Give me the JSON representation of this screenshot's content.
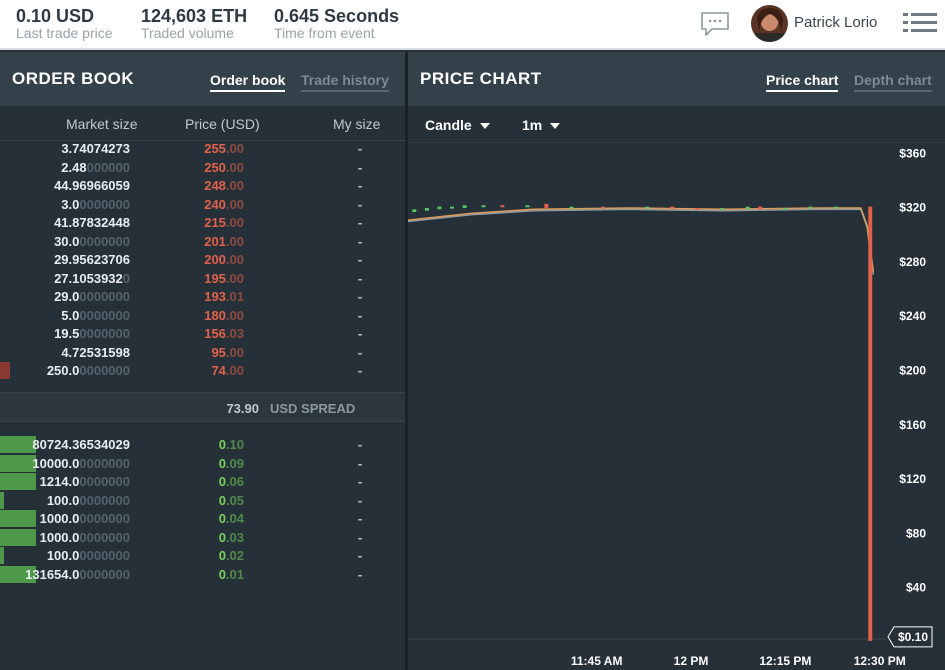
{
  "topbar": {
    "stats": [
      {
        "value": "0.10 USD",
        "label": "Last trade price"
      },
      {
        "value": "124,603 ETH",
        "label": "Traded volume"
      },
      {
        "value": "0.645 Seconds",
        "label": "Time from event"
      }
    ],
    "user_name": "Patrick Lorio",
    "icons": {
      "chat": "chat-bubble-icon",
      "menu": "hamburger-menu-icon"
    }
  },
  "order_book": {
    "title": "ORDER BOOK",
    "tabs": [
      {
        "label": "Order book",
        "active": true
      },
      {
        "label": "Trade history",
        "active": false
      }
    ],
    "columns": [
      "Market size",
      "Price (USD)",
      "My size"
    ],
    "asks": [
      {
        "size_main": "3.74074273",
        "size_pad": "",
        "price_main": "255",
        "price_pad": ".00",
        "my_size": "-",
        "depth": 0.0
      },
      {
        "size_main": "2.48",
        "size_pad": "000000",
        "price_main": "250",
        "price_pad": ".00",
        "my_size": "-",
        "depth": 0.0
      },
      {
        "size_main": "44.96966059",
        "size_pad": "",
        "price_main": "248",
        "price_pad": ".00",
        "my_size": "-",
        "depth": 0.0
      },
      {
        "size_main": "3.0",
        "size_pad": "0000000",
        "price_main": "240",
        "price_pad": ".00",
        "my_size": "-",
        "depth": 0.0
      },
      {
        "size_main": "41.87832448",
        "size_pad": "",
        "price_main": "215",
        "price_pad": ".00",
        "my_size": "-",
        "depth": 0.0
      },
      {
        "size_main": "30.0",
        "size_pad": "0000000",
        "price_main": "201",
        "price_pad": ".00",
        "my_size": "-",
        "depth": 0.0
      },
      {
        "size_main": "29.95623706",
        "size_pad": "",
        "price_main": "200",
        "price_pad": ".00",
        "my_size": "-",
        "depth": 0.0
      },
      {
        "size_main": "27.1053932",
        "size_pad": "0",
        "price_main": "195",
        "price_pad": ".00",
        "my_size": "-",
        "depth": 0.0
      },
      {
        "size_main": "29.0",
        "size_pad": "0000000",
        "price_main": "193",
        "price_pad": ".01",
        "my_size": "-",
        "depth": 0.0
      },
      {
        "size_main": "5.0",
        "size_pad": "0000000",
        "price_main": "180",
        "price_pad": ".00",
        "my_size": "-",
        "depth": 0.0
      },
      {
        "size_main": "19.5",
        "size_pad": "0000000",
        "price_main": "156",
        "price_pad": ".03",
        "my_size": "-",
        "depth": 0.0
      },
      {
        "size_main": "4.72531598",
        "size_pad": "",
        "price_main": "95",
        "price_pad": ".00",
        "my_size": "-",
        "depth": 0.0
      },
      {
        "size_main": "250.0",
        "size_pad": "0000000",
        "price_main": "74",
        "price_pad": ".00",
        "my_size": "-",
        "depth": 0.025
      }
    ],
    "spread": {
      "value": "73.90",
      "label": "USD SPREAD"
    },
    "bids": [
      {
        "size_main": "80724.36534029",
        "size_pad": "",
        "price_main": "0",
        "price_pad": ".10",
        "my_size": "-",
        "depth": 0.09
      },
      {
        "size_main": "10000.0",
        "size_pad": "0000000",
        "price_main": "0",
        "price_pad": ".09",
        "my_size": "-",
        "depth": 0.09
      },
      {
        "size_main": "1214.0",
        "size_pad": "0000000",
        "price_main": "0",
        "price_pad": ".06",
        "my_size": "-",
        "depth": 0.09
      },
      {
        "size_main": "100.0",
        "size_pad": "0000000",
        "price_main": "0",
        "price_pad": ".05",
        "my_size": "-",
        "depth": 0.01
      },
      {
        "size_main": "1000.0",
        "size_pad": "0000000",
        "price_main": "0",
        "price_pad": ".04",
        "my_size": "-",
        "depth": 0.09
      },
      {
        "size_main": "1000.0",
        "size_pad": "0000000",
        "price_main": "0",
        "price_pad": ".03",
        "my_size": "-",
        "depth": 0.09
      },
      {
        "size_main": "100.0",
        "size_pad": "0000000",
        "price_main": "0",
        "price_pad": ".02",
        "my_size": "-",
        "depth": 0.01
      },
      {
        "size_main": "131654.0",
        "size_pad": "0000000",
        "price_main": "0",
        "price_pad": ".01",
        "my_size": "-",
        "depth": 0.09
      }
    ],
    "colors": {
      "ask": "#e2614c",
      "bid": "#79d05c",
      "ask_bar": "#8a3a33",
      "bid_bar": "#4f9a4a"
    }
  },
  "price_chart": {
    "title": "PRICE CHART",
    "tabs": [
      {
        "label": "Price chart",
        "active": true
      },
      {
        "label": "Depth chart",
        "active": false
      }
    ],
    "chart_type_control": "Candle",
    "interval_control": "1m",
    "last_price_label": "$0.10"
  },
  "chart_data": {
    "type": "line",
    "title": "",
    "xlabel": "",
    "ylabel": "",
    "ylim": [
      0,
      370
    ],
    "y_ticks": [
      360,
      320,
      280,
      240,
      200,
      160,
      120,
      80,
      40
    ],
    "y_tick_labels": [
      "$360",
      "$320",
      "$280",
      "$240",
      "$200",
      "$160",
      "$120",
      "$80",
      "$40"
    ],
    "x_ticks": [
      {
        "t": 30,
        "label": "11:45 AM"
      },
      {
        "t": 45,
        "label": "12 PM"
      },
      {
        "t": 60,
        "label": "12:15 PM"
      },
      {
        "t": 75,
        "label": "12:30 PM"
      }
    ],
    "xlim": [
      0,
      76
    ],
    "series": [
      {
        "values": [
          [
            0,
            309
          ],
          [
            10,
            314
          ],
          [
            20,
            317
          ],
          [
            35,
            318
          ],
          [
            50,
            317
          ],
          [
            65,
            318
          ],
          [
            72,
            318
          ],
          [
            73,
            305
          ],
          [
            74,
            270
          ]
        ],
        "color": "#8a9aa2"
      },
      {
        "values": [
          [
            0,
            310
          ],
          [
            10,
            315
          ],
          [
            20,
            318
          ],
          [
            35,
            319
          ],
          [
            50,
            318
          ],
          [
            65,
            319
          ],
          [
            72,
            319
          ],
          [
            73,
            306
          ],
          [
            74,
            272
          ]
        ],
        "color": "#d89a5a"
      }
    ],
    "candles": [
      {
        "t": 1,
        "o": 316,
        "c": 318,
        "dir": "up"
      },
      {
        "t": 3,
        "o": 317,
        "c": 319,
        "dir": "up"
      },
      {
        "t": 5,
        "o": 318,
        "c": 320,
        "dir": "up"
      },
      {
        "t": 7,
        "o": 319,
        "c": 320,
        "dir": "up"
      },
      {
        "t": 9,
        "o": 319,
        "c": 321,
        "dir": "up"
      },
      {
        "t": 12,
        "o": 320,
        "c": 321,
        "dir": "up"
      },
      {
        "t": 15,
        "o": 321,
        "c": 320,
        "dir": "down"
      },
      {
        "t": 19,
        "o": 320,
        "c": 321,
        "dir": "up"
      },
      {
        "t": 22,
        "o": 322,
        "c": 319,
        "dir": "down"
      },
      {
        "t": 26,
        "o": 319,
        "c": 320,
        "dir": "up"
      },
      {
        "t": 31,
        "o": 320,
        "c": 319,
        "dir": "down"
      },
      {
        "t": 38,
        "o": 319,
        "c": 320,
        "dir": "up"
      },
      {
        "t": 42,
        "o": 320,
        "c": 319,
        "dir": "down"
      },
      {
        "t": 46,
        "o": 319,
        "c": 318,
        "dir": "down"
      },
      {
        "t": 50,
        "o": 318,
        "c": 319,
        "dir": "up"
      },
      {
        "t": 54,
        "o": 318,
        "c": 320,
        "dir": "up"
      },
      {
        "t": 56,
        "o": 320,
        "c": 318,
        "dir": "down"
      },
      {
        "t": 60,
        "o": 318,
        "c": 319,
        "dir": "up"
      },
      {
        "t": 64,
        "o": 319,
        "c": 320,
        "dir": "up"
      },
      {
        "t": 68,
        "o": 319,
        "c": 320,
        "dir": "up"
      },
      {
        "t": 73.5,
        "o": 320,
        "c": 0.1,
        "dir": "down"
      }
    ],
    "last_price": 0.1,
    "colors": {
      "up": "#5cc36a",
      "down": "#e2614c",
      "grid": "#303c44",
      "axis_text": "#ffffff"
    },
    "grid": false
  }
}
